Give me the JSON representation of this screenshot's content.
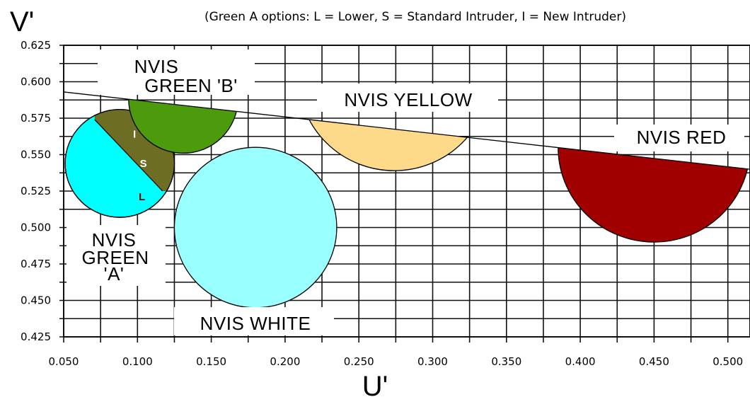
{
  "header": {
    "note": "(Green A options:  L = Lower,   S = Standard Intruder,  I = New Intruder)"
  },
  "chart_data": {
    "type": "scatter",
    "title": "",
    "xlabel": "U'",
    "ylabel": "V'",
    "xlim": [
      0.05,
      0.515
    ],
    "ylim": [
      0.425,
      0.625
    ],
    "x_ticks": [
      "0.050",
      "0.100",
      "0.150",
      "0.200",
      "0.250",
      "0.300",
      "0.350",
      "0.400",
      "0.450",
      "0.500"
    ],
    "y_ticks": [
      "0.625",
      "0.600",
      "0.575",
      "0.550",
      "0.525",
      "0.500",
      "0.475",
      "0.450",
      "0.425"
    ],
    "grid": true,
    "boundary_line": {
      "from": [
        0.05,
        0.593
      ],
      "to": [
        0.515,
        0.54
      ]
    },
    "regions": [
      {
        "name": "NVIS GREEN 'A'",
        "label_lines": [
          "NVIS",
          "GREEN",
          "'A'"
        ],
        "center": [
          0.088,
          0.544
        ],
        "radius": 0.037,
        "color": "#00ffff",
        "shape": "circle",
        "note": "upper-right part olive (I region)"
      },
      {
        "name": "NVIS GREEN 'B'",
        "label_lines": [
          "NVIS",
          "GREEN 'B'"
        ],
        "center": [
          0.131,
          0.588
        ],
        "radius": 0.037,
        "color": "#4c9b0c",
        "shape": "half-circle-below-line"
      },
      {
        "name": "NVIS YELLOW",
        "label_lines": [
          "NVIS YELLOW"
        ],
        "center": [
          0.274,
          0.604
        ],
        "radius": 0.065,
        "color": "#fdd98a",
        "shape": "half-circle-below-line"
      },
      {
        "name": "NVIS WHITE",
        "label_lines": [
          "NVIS WHITE"
        ],
        "center": [
          0.18,
          0.5
        ],
        "radius": 0.055,
        "color": "#99ffff",
        "shape": "circle"
      },
      {
        "name": "NVIS RED",
        "label_lines": [
          "NVIS RED"
        ],
        "center": [
          0.45,
          0.555
        ],
        "radius": 0.065,
        "color": "#a00000",
        "shape": "half-circle-below-line"
      }
    ],
    "green_a_options": [
      {
        "letter": "I",
        "at": [
          0.098,
          0.564
        ],
        "color": "#ffffff"
      },
      {
        "letter": "S",
        "at": [
          0.104,
          0.544
        ],
        "color": "#ffffff"
      },
      {
        "letter": "L",
        "at": [
          0.103,
          0.521
        ],
        "color": "#000000"
      }
    ],
    "colors": {
      "olive": "#6d6e24",
      "grid": "#111111"
    }
  }
}
